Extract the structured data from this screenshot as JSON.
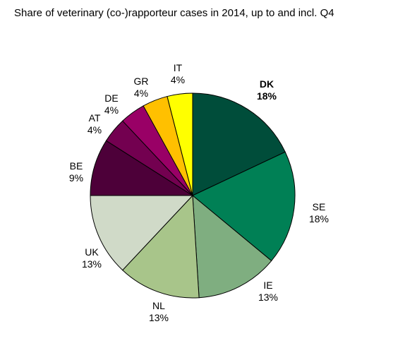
{
  "chart_data": {
    "type": "pie",
    "title": "Share of veterinary (co-)rapporteur cases in 2014, up to and incl. Q4",
    "slices": [
      {
        "name": "DK",
        "value_label": "18%",
        "value": 18,
        "color": "#004d3a",
        "bold": true
      },
      {
        "name": "SE",
        "value_label": "18%",
        "value": 18,
        "color": "#008055",
        "bold": false
      },
      {
        "name": "IE",
        "value_label": "13%",
        "value": 13,
        "color": "#7fae80",
        "bold": false
      },
      {
        "name": "NL",
        "value_label": "13%",
        "value": 13,
        "color": "#a8c58a",
        "bold": false
      },
      {
        "name": "UK",
        "value_label": "13%",
        "value": 13,
        "color": "#d0dac8",
        "bold": false
      },
      {
        "name": "BE",
        "value_label": "9%",
        "value": 9,
        "color": "#4d0039",
        "bold": false
      },
      {
        "name": "AT",
        "value_label": "4%",
        "value": 4,
        "color": "#730050",
        "bold": false
      },
      {
        "name": "DE",
        "value_label": "4%",
        "value": 4,
        "color": "#990066",
        "bold": false
      },
      {
        "name": "GR",
        "value_label": "4%",
        "value": 4,
        "color": "#ffc000",
        "bold": false
      },
      {
        "name": "IT",
        "value_label": "4%",
        "value": 4,
        "color": "#ffff00",
        "bold": false
      }
    ]
  }
}
